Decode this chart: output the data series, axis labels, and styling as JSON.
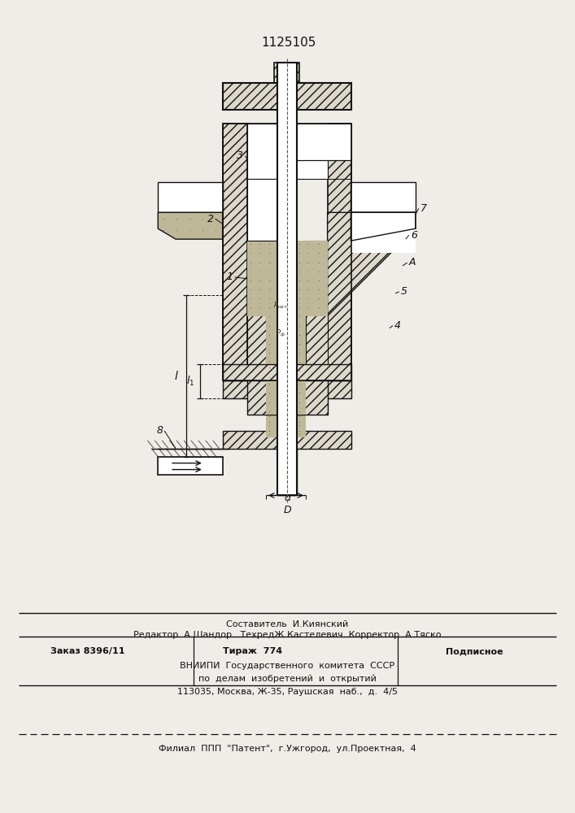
{
  "patent_number": "1125105",
  "bg_color": "#f0ede8",
  "line_color": "#111111",
  "hatch_color": "#222222",
  "footer": {
    "line1": "Составитель  И.Киянский",
    "line2": "Редактор  А.Шандор   ТехредЖ.Кастелевич  Корректор  А.Тяско",
    "zak": "Заказ  8396/11",
    "tir": "Тираж  774",
    "pod": "Подписное",
    "vni": "ВНИИПИ  Государственного  комитета  СССР",
    "del": "по  делам  изобретений  и  открытий",
    "adr": "113035, Москва, Ж-35, Раушская  наб.,  д.  4/5",
    "fil": "Филиал  ППП  \"Патент\",  г.Ужгород,  ул.Проектная,  4"
  }
}
